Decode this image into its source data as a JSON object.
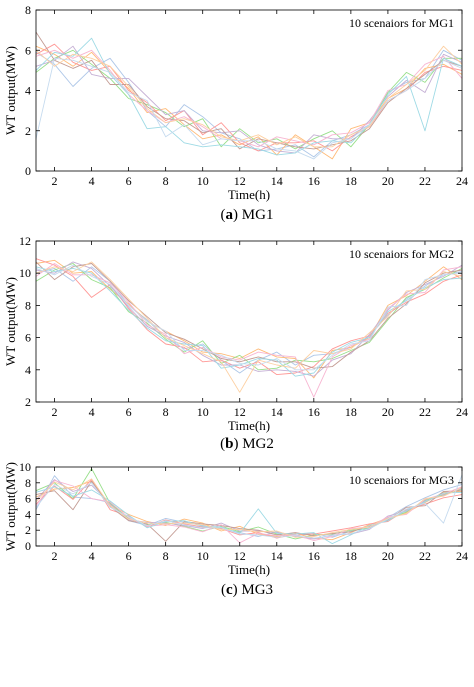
{
  "colors": [
    "#aec7e8",
    "#ffbb78",
    "#98df8a",
    "#ff9896",
    "#c5b0d5",
    "#c49c94",
    "#f7b6d2",
    "#9edae5",
    "#fdd0a2",
    "#c6dbef"
  ],
  "charts": [
    {
      "caption_letter": "a",
      "caption_text": "MG1",
      "chart_data": {
        "type": "line",
        "annotation": "10 scenaiors for MG1",
        "xlabel": "Time(h)",
        "ylabel": "WT output(MW)",
        "xlim": [
          1,
          24
        ],
        "ylim": [
          0,
          8
        ],
        "xticks": [
          2,
          4,
          6,
          8,
          10,
          12,
          14,
          16,
          18,
          20,
          22,
          24
        ],
        "yticks": [
          0,
          2,
          4,
          6,
          8
        ],
        "x": [
          1,
          2,
          3,
          4,
          5,
          6,
          7,
          8,
          9,
          10,
          11,
          12,
          13,
          14,
          15,
          16,
          17,
          18,
          19,
          20,
          21,
          22,
          23,
          24
        ],
        "series": [
          {
            "values": [
              5.9,
              5.3,
              4.2,
              5.1,
              5.6,
              4.4,
              3.0,
              2.2,
              3.3,
              2.7,
              1.9,
              1.6,
              1.0,
              1.1,
              1.3,
              0.7,
              1.5,
              1.8,
              2.3,
              3.9,
              4.4,
              4.6,
              6.0,
              5.5
            ]
          },
          {
            "values": [
              6.2,
              5.8,
              5.2,
              5.9,
              4.9,
              4.1,
              2.9,
              3.1,
              2.3,
              1.6,
              1.8,
              1.3,
              1.7,
              0.8,
              1.8,
              1.2,
              0.6,
              2.1,
              2.4,
              3.6,
              4.1,
              5.1,
              5.3,
              4.8
            ]
          },
          {
            "values": [
              4.9,
              5.6,
              6.0,
              5.3,
              4.6,
              3.6,
              3.3,
              2.9,
              2.2,
              2.6,
              1.2,
              2.1,
              1.4,
              1.6,
              1.1,
              1.6,
              2.0,
              1.2,
              2.3,
              3.9,
              4.9,
              4.4,
              5.6,
              5.6
            ]
          },
          {
            "values": [
              5.8,
              6.3,
              5.4,
              5.0,
              5.2,
              4.0,
              3.4,
              2.5,
              3.0,
              1.8,
              2.4,
              1.4,
              1.0,
              1.4,
              1.4,
              1.5,
              1.0,
              1.7,
              2.2,
              3.5,
              4.0,
              4.9,
              5.2,
              5.0
            ]
          },
          {
            "values": [
              5.2,
              5.5,
              6.2,
              4.8,
              4.6,
              4.6,
              3.7,
              2.8,
              3.0,
              2.0,
              1.9,
              2.0,
              1.3,
              1.0,
              0.9,
              1.8,
              1.6,
              1.6,
              2.5,
              3.7,
              4.5,
              3.9,
              5.8,
              5.4
            ]
          },
          {
            "values": [
              6.9,
              5.5,
              5.1,
              5.5,
              4.3,
              4.3,
              3.2,
              2.6,
              2.5,
              1.9,
              2.1,
              1.1,
              1.6,
              1.4,
              1.2,
              1.1,
              1.3,
              1.5,
              2.1,
              3.4,
              4.1,
              4.8,
              5.5,
              5.2
            ]
          },
          {
            "values": [
              5.7,
              6.0,
              5.6,
              6.0,
              5.0,
              3.8,
              3.0,
              2.4,
              2.7,
              2.2,
              1.6,
              1.5,
              1.2,
              1.7,
              1.5,
              1.3,
              1.8,
              1.9,
              2.4,
              4.0,
              4.3,
              5.3,
              5.7,
              4.6
            ]
          },
          {
            "values": [
              5.0,
              5.9,
              5.7,
              6.6,
              4.8,
              3.8,
              2.1,
              2.2,
              1.4,
              1.2,
              1.3,
              1.2,
              1.1,
              0.8,
              0.9,
              1.4,
              1.5,
              1.4,
              2.3,
              3.8,
              4.7,
              2.0,
              5.6,
              5.2
            ]
          },
          {
            "values": [
              6.0,
              5.2,
              5.8,
              5.6,
              5.2,
              4.2,
              3.1,
              2.4,
              2.6,
              2.3,
              1.7,
              1.5,
              1.8,
              1.3,
              1.7,
              1.2,
              1.2,
              1.8,
              2.2,
              3.6,
              4.3,
              5.0,
              6.2,
              5.3
            ]
          },
          {
            "values": [
              1.6,
              5.6,
              5.5,
              5.2,
              4.9,
              3.9,
              3.5,
              1.7,
              2.3,
              1.3,
              1.6,
              1.5,
              1.5,
              1.1,
              1.0,
              0.6,
              1.4,
              1.6,
              2.3,
              3.5,
              4.0,
              4.6,
              5.5,
              5.1
            ]
          }
        ]
      }
    },
    {
      "caption_letter": "b",
      "caption_text": "MG2",
      "chart_data": {
        "type": "line",
        "annotation": "10 scenaiors for MG2",
        "xlabel": "Time(h)",
        "ylabel": "WT output(MW)",
        "xlim": [
          1,
          24
        ],
        "ylim": [
          2,
          12
        ],
        "xticks": [
          2,
          4,
          6,
          8,
          10,
          12,
          14,
          16,
          18,
          20,
          22,
          24
        ],
        "yticks": [
          2,
          4,
          6,
          8,
          10,
          12
        ],
        "x": [
          1,
          2,
          3,
          4,
          5,
          6,
          7,
          8,
          9,
          10,
          11,
          12,
          13,
          14,
          15,
          16,
          17,
          18,
          19,
          20,
          21,
          22,
          23,
          24
        ],
        "series": [
          {
            "values": [
              10.0,
              10.3,
              9.5,
              10.4,
              9.5,
              8.0,
              7.1,
              6.0,
              5.3,
              5.6,
              4.6,
              3.8,
              4.6,
              5.1,
              4.3,
              4.9,
              5.0,
              5.4,
              6.1,
              7.4,
              8.4,
              9.2,
              9.9,
              10.1
            ]
          },
          {
            "values": [
              10.6,
              10.8,
              10.0,
              10.1,
              9.0,
              8.1,
              7.0,
              6.4,
              5.8,
              5.1,
              5.0,
              4.7,
              5.3,
              4.8,
              4.7,
              3.5,
              5.2,
              5.4,
              6.0,
              8.0,
              8.6,
              9.5,
              10.4,
              9.6
            ]
          },
          {
            "values": [
              9.5,
              10.2,
              10.6,
              9.6,
              9.1,
              7.6,
              6.9,
              5.9,
              5.1,
              5.8,
              4.4,
              4.9,
              4.0,
              4.1,
              4.6,
              4.5,
              4.7,
              5.2,
              5.7,
              7.1,
              8.5,
              9.0,
              9.7,
              10.3
            ]
          },
          {
            "values": [
              10.9,
              10.5,
              9.8,
              8.5,
              9.3,
              7.8,
              6.5,
              5.6,
              5.4,
              4.5,
              4.6,
              4.1,
              4.5,
              3.7,
              3.8,
              4.2,
              5.3,
              5.8,
              6.1,
              7.5,
              8.2,
              8.7,
              9.5,
              9.9
            ]
          },
          {
            "values": [
              10.2,
              10.0,
              10.7,
              10.3,
              9.2,
              7.9,
              6.7,
              6.1,
              5.7,
              4.9,
              4.3,
              4.3,
              3.9,
              4.0,
              3.9,
              3.6,
              4.6,
              5.0,
              6.2,
              7.7,
              8.8,
              9.3,
              9.8,
              10.5
            ]
          },
          {
            "values": [
              10.7,
              9.6,
              10.4,
              10.6,
              9.5,
              8.3,
              7.3,
              6.3,
              5.9,
              5.3,
              4.7,
              4.5,
              4.8,
              4.5,
              4.5,
              4.1,
              4.2,
              5.1,
              5.8,
              7.2,
              8.1,
              9.4,
              10.0,
              10.2
            ]
          },
          {
            "values": [
              9.8,
              10.6,
              9.9,
              9.9,
              9.4,
              8.2,
              6.8,
              6.2,
              5.0,
              5.4,
              4.8,
              4.6,
              5.1,
              4.9,
              4.8,
              2.3,
              4.8,
              5.5,
              5.9,
              7.8,
              8.7,
              8.8,
              10.2,
              10.4
            ]
          },
          {
            "values": [
              10.4,
              10.1,
              10.3,
              10.0,
              8.9,
              7.7,
              6.6,
              5.8,
              5.6,
              5.5,
              4.1,
              4.3,
              4.7,
              4.6,
              3.6,
              3.8,
              5.1,
              5.7,
              6.0,
              7.6,
              8.3,
              9.1,
              9.6,
              9.7
            ]
          },
          {
            "values": [
              10.0,
              10.4,
              10.1,
              10.7,
              9.6,
              8.4,
              7.2,
              6.0,
              5.5,
              5.0,
              4.5,
              2.6,
              4.6,
              4.3,
              4.1,
              5.2,
              5.0,
              5.3,
              6.3,
              7.3,
              8.9,
              9.0,
              10.1,
              9.8
            ]
          },
          {
            "values": [
              10.3,
              9.9,
              10.5,
              9.8,
              9.3,
              8.0,
              7.0,
              6.4,
              5.2,
              5.2,
              4.9,
              4.4,
              4.3,
              4.7,
              4.0,
              4.0,
              4.9,
              5.6,
              5.8,
              7.9,
              8.0,
              9.6,
              9.9,
              10.0
            ]
          }
        ]
      }
    },
    {
      "caption_letter": "c",
      "caption_text": "MG3",
      "chart_data": {
        "type": "line",
        "annotation": "10 scenaiors for MG3",
        "xlabel": "Time(h)",
        "ylabel": "WT output(MW)",
        "xlim": [
          1,
          24
        ],
        "ylim": [
          0,
          10
        ],
        "xticks": [
          2,
          4,
          6,
          8,
          10,
          12,
          14,
          16,
          18,
          20,
          22,
          24
        ],
        "yticks": [
          0,
          2,
          4,
          6,
          8,
          10
        ],
        "x": [
          1,
          2,
          3,
          4,
          5,
          6,
          7,
          8,
          9,
          10,
          11,
          12,
          13,
          14,
          15,
          16,
          17,
          18,
          19,
          20,
          21,
          22,
          23,
          24
        ],
        "series": [
          {
            "values": [
              4.6,
              8.9,
              6.2,
              6.0,
              5.5,
              3.2,
              2.6,
              3.5,
              3.0,
              2.6,
              2.2,
              1.7,
              1.2,
              1.8,
              1.3,
              1.6,
              1.1,
              1.9,
              2.3,
              3.6,
              5.0,
              6.1,
              7.1,
              7.8
            ]
          },
          {
            "values": [
              6.2,
              7.2,
              7.4,
              8.2,
              5.2,
              4.0,
              3.1,
              2.6,
              3.4,
              2.9,
              1.9,
              2.5,
              1.5,
              1.2,
              1.6,
              1.0,
              0.8,
              1.7,
              2.7,
              3.5,
              4.2,
              5.5,
              6.8,
              6.9
            ]
          },
          {
            "values": [
              7.0,
              8.0,
              6.0,
              9.8,
              5.4,
              3.5,
              2.7,
              3.0,
              2.5,
              1.9,
              2.5,
              1.8,
              2.4,
              1.5,
              0.9,
              1.4,
              1.5,
              2.0,
              2.2,
              3.4,
              4.3,
              5.8,
              6.5,
              7.2
            ]
          },
          {
            "values": [
              5.3,
              7.6,
              5.9,
              8.4,
              4.6,
              3.8,
              2.4,
              3.3,
              2.8,
              2.4,
              2.2,
              1.4,
              1.7,
              1.0,
              1.5,
              1.5,
              1.9,
              2.3,
              2.8,
              3.1,
              4.6,
              5.3,
              6.1,
              6.5
            ]
          },
          {
            "values": [
              5.8,
              8.4,
              6.9,
              7.7,
              5.3,
              3.3,
              3.0,
              2.9,
              2.6,
              2.2,
              2.9,
              1.9,
              1.9,
              1.7,
              1.2,
              0.9,
              1.4,
              1.5,
              2.1,
              3.8,
              4.4,
              5.7,
              6.4,
              7.3
            ]
          },
          {
            "values": [
              6.5,
              7.0,
              4.6,
              8.2,
              5.0,
              3.2,
              2.8,
              0.6,
              3.1,
              2.8,
              2.6,
              2.2,
              2.0,
              1.4,
              1.7,
              1.3,
              1.6,
              1.8,
              2.5,
              3.3,
              4.9,
              5.1,
              6.9,
              7.0
            ]
          },
          {
            "values": [
              5.1,
              8.3,
              7.6,
              6.0,
              5.6,
              3.6,
              2.5,
              2.7,
              2.4,
              1.8,
              2.7,
              0.4,
              1.6,
              1.3,
              1.4,
              0.7,
              1.2,
              2.2,
              2.4,
              3.7,
              4.0,
              5.9,
              6.6,
              7.5
            ]
          },
          {
            "values": [
              6.8,
              7.5,
              6.3,
              7.1,
              5.7,
              3.9,
              2.3,
              3.1,
              3.2,
              2.5,
              2.4,
              1.6,
              4.7,
              1.6,
              1.5,
              1.7,
              0.3,
              1.4,
              2.6,
              3.2,
              4.5,
              5.6,
              6.7,
              6.8
            ]
          },
          {
            "values": [
              5.6,
              8.1,
              7.1,
              8.5,
              5.1,
              3.4,
              2.9,
              2.8,
              2.9,
              2.7,
              2.1,
              2.1,
              1.8,
              1.9,
              1.1,
              1.2,
              1.7,
              2.1,
              2.4,
              3.5,
              4.1,
              6.0,
              6.3,
              7.4
            ]
          },
          {
            "values": [
              4.9,
              7.8,
              6.6,
              8.0,
              4.9,
              3.7,
              2.6,
              3.2,
              2.7,
              2.3,
              2.3,
              1.5,
              1.4,
              1.1,
              1.3,
              1.0,
              1.3,
              1.6,
              2.2,
              3.4,
              4.7,
              5.4,
              2.9,
              9.0
            ]
          }
        ]
      }
    }
  ]
}
